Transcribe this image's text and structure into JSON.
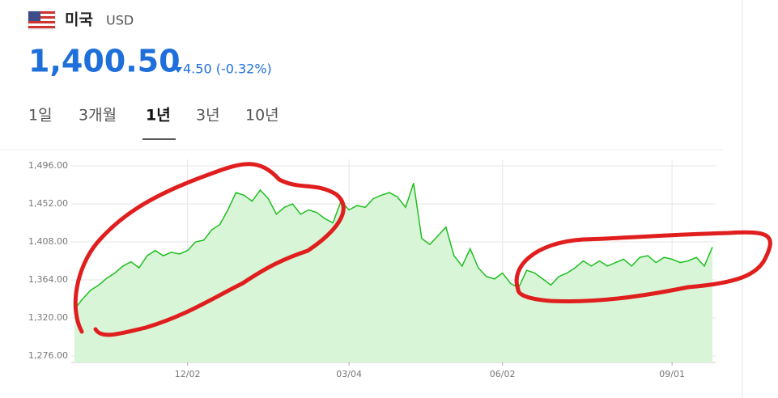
{
  "header": {
    "country": "미국",
    "currency": "USD",
    "price": "1,400.50",
    "change": "4.50 (-0.32%)"
  },
  "tabs": [
    "1일",
    "3개월",
    "1년",
    "3년",
    "10년"
  ],
  "active_tab": 2,
  "chart_data": {
    "type": "area",
    "categories": [
      null,
      null,
      null,
      null,
      null,
      null,
      null,
      null,
      null,
      null,
      null,
      null,
      null,
      null,
      "12/02",
      null,
      null,
      null,
      null,
      null,
      null,
      null,
      null,
      null,
      null,
      null,
      null,
      null,
      null,
      null,
      null,
      null,
      null,
      null,
      "03/04",
      null,
      null,
      null,
      null,
      null,
      null,
      null,
      null,
      null,
      null,
      null,
      null,
      null,
      null,
      null,
      null,
      null,
      null,
      "06/02",
      null,
      null,
      null,
      null,
      null,
      null,
      null,
      null,
      null,
      null,
      null,
      null,
      null,
      null,
      null,
      null,
      null,
      null,
      null,
      null,
      "09/01",
      null,
      null,
      null,
      null,
      null
    ],
    "series": [
      {
        "name": "USD",
        "color": "#1fbf1f",
        "fill": "#d8f5d8",
        "values": [
          1330,
          1342,
          1352,
          1358,
          1366,
          1372,
          1380,
          1385,
          1378,
          1392,
          1398,
          1392,
          1396,
          1394,
          1398,
          1408,
          1410,
          1422,
          1428,
          1445,
          1465,
          1462,
          1455,
          1468,
          1458,
          1440,
          1448,
          1452,
          1440,
          1445,
          1442,
          1435,
          1430,
          1455,
          1445,
          1450,
          1448,
          1458,
          1462,
          1465,
          1460,
          1448,
          1476,
          1412,
          1405,
          1415,
          1425,
          1392,
          1380,
          1400,
          1378,
          1368,
          1365,
          1372,
          1360,
          1355,
          1375,
          1372,
          1365,
          1358,
          1368,
          1372,
          1378,
          1386,
          1380,
          1386,
          1380,
          1384,
          1388,
          1380,
          1390,
          1392,
          1384,
          1390,
          1388,
          1384,
          1386,
          1390,
          1380,
          1402
        ]
      }
    ],
    "ylim": [
      1268.5,
      1503.5
    ],
    "yticks": [
      {
        "value": 1276,
        "label": "1,276.00"
      },
      {
        "value": 1320,
        "label": "1,320.00"
      },
      {
        "value": 1364,
        "label": "1,364.00"
      },
      {
        "value": 1408,
        "label": "1,408.00"
      },
      {
        "value": 1452,
        "label": "1,452.00"
      },
      {
        "value": 1496,
        "label": "1,496.00"
      }
    ],
    "grid": true
  }
}
